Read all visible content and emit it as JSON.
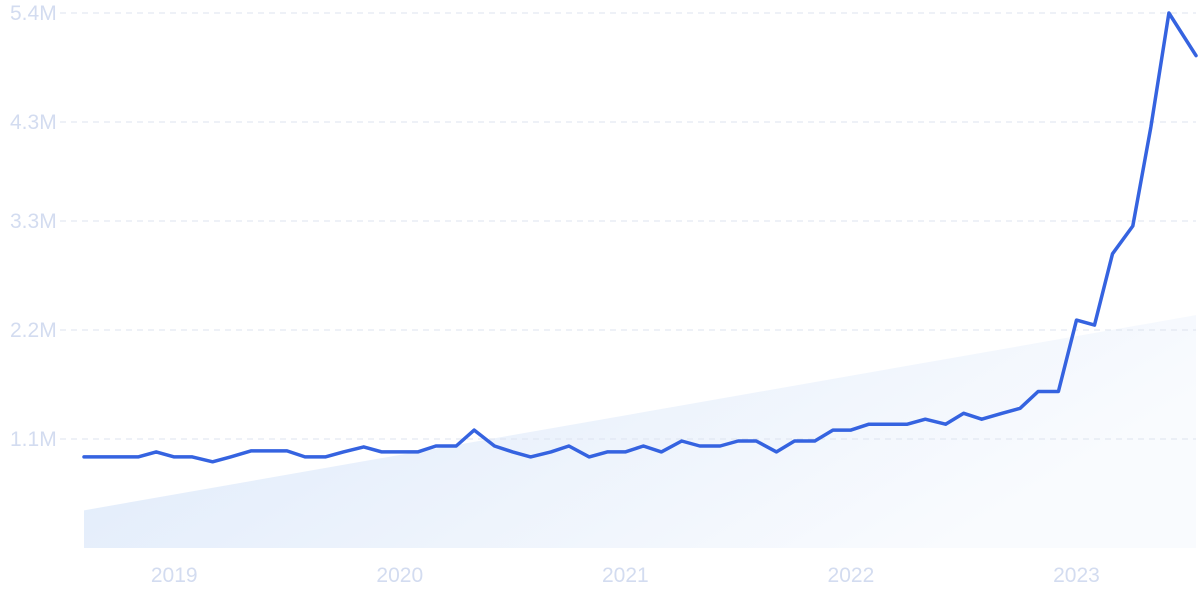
{
  "chart_data": {
    "type": "line",
    "title": "",
    "xlabel": "",
    "ylabel": "",
    "ylim": [
      0,
      5.4
    ],
    "y_ticks": [
      {
        "value": 1.1,
        "label": "1.1M"
      },
      {
        "value": 2.2,
        "label": "2.2M"
      },
      {
        "value": 3.3,
        "label": "3.3M"
      },
      {
        "value": 4.3,
        "label": "4.3M"
      },
      {
        "value": 5.4,
        "label": "5.4M"
      }
    ],
    "x_range": [
      2018.6,
      2023.53
    ],
    "x_ticks": [
      {
        "value": 2019,
        "label": "2019"
      },
      {
        "value": 2020,
        "label": "2020"
      },
      {
        "value": 2021,
        "label": "2021"
      },
      {
        "value": 2022,
        "label": "2022"
      },
      {
        "value": 2023,
        "label": "2023"
      }
    ],
    "grid": "horizontal dashed",
    "colors": {
      "line": "#3563e0",
      "trend_fill": "#e4eefb",
      "grid": "#dde3ef",
      "tick_text": "#d3dcf0"
    },
    "trend": {
      "type": "area",
      "start": 0.38,
      "end": 2.35
    },
    "series": [
      {
        "name": "",
        "x": [
          2018.6,
          2018.68,
          2018.76,
          2018.84,
          2018.92,
          2019.0,
          2019.08,
          2019.17,
          2019.25,
          2019.34,
          2019.42,
          2019.5,
          2019.58,
          2019.67,
          2019.75,
          2019.84,
          2019.92,
          2020.0,
          2020.08,
          2020.16,
          2020.25,
          2020.33,
          2020.42,
          2020.5,
          2020.58,
          2020.67,
          2020.75,
          2020.84,
          2020.92,
          2021.0,
          2021.08,
          2021.16,
          2021.25,
          2021.33,
          2021.42,
          2021.5,
          2021.58,
          2021.67,
          2021.75,
          2021.84,
          2021.92,
          2022.0,
          2022.08,
          2022.16,
          2022.25,
          2022.33,
          2022.42,
          2022.5,
          2022.58,
          2022.67,
          2022.75,
          2022.83,
          2022.92,
          2023.0,
          2023.08,
          2023.16,
          2023.25,
          2023.33,
          2023.41,
          2023.53
        ],
        "values": [
          0.92,
          0.92,
          0.92,
          0.92,
          0.97,
          0.92,
          0.92,
          0.87,
          0.92,
          0.98,
          0.98,
          0.98,
          0.92,
          0.92,
          0.97,
          1.02,
          0.97,
          0.97,
          0.97,
          1.03,
          1.03,
          1.19,
          1.03,
          0.97,
          0.92,
          0.97,
          1.03,
          0.92,
          0.97,
          0.97,
          1.03,
          0.97,
          1.08,
          1.03,
          1.03,
          1.08,
          1.08,
          0.97,
          1.08,
          1.08,
          1.19,
          1.19,
          1.25,
          1.25,
          1.25,
          1.3,
          1.25,
          1.36,
          1.3,
          1.36,
          1.41,
          1.58,
          1.58,
          2.3,
          2.25,
          2.97,
          3.25,
          4.25,
          5.4,
          4.97
        ]
      }
    ]
  }
}
